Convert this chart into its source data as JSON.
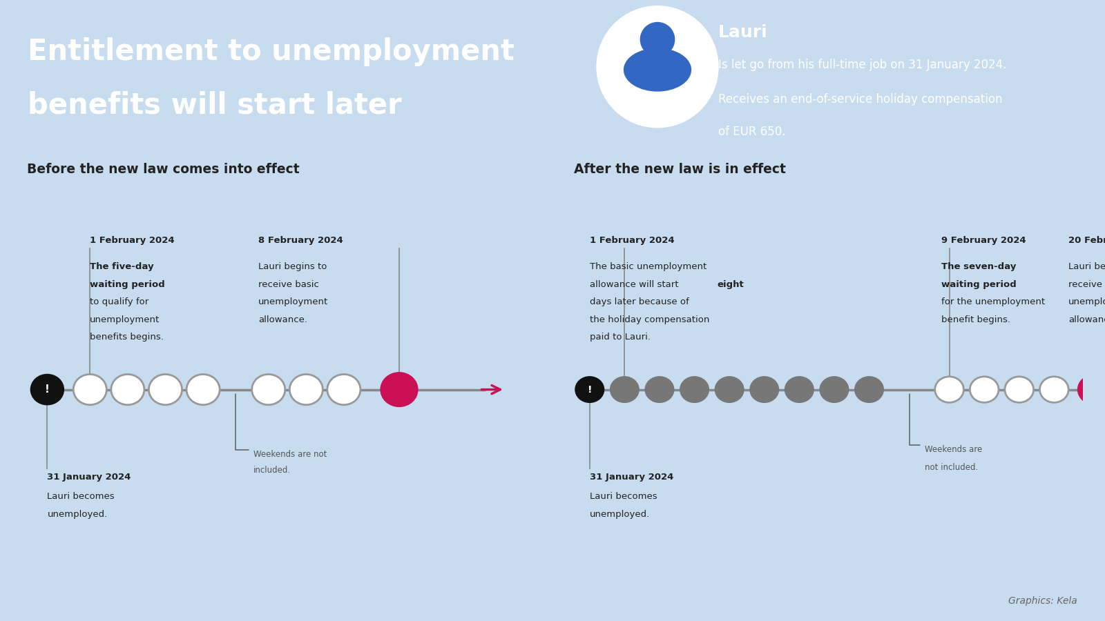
{
  "header_bg": "#3367C4",
  "body_bg": "#C8DCF0",
  "title_line1": "Entitlement to unemployment",
  "title_line2": "benefits will start later",
  "title_color": "#FFFFFF",
  "person_name": "Lauri",
  "person_line1": "Is let go from his full-time job on 31 January 2024.",
  "person_line2": "Receives an end-of-service holiday compensation",
  "person_line3": "of EUR 650.",
  "section1_title": "Before the new law comes into effect",
  "section2_title": "After the new law is in effect",
  "footer": "Graphics: Kela",
  "dark_circle_color": "#777777",
  "white_circle_color": "#FFFFFF",
  "red_circle_color": "#CC1055",
  "black_circle_color": "#111111",
  "arrow_color": "#CC1055",
  "line_color": "#888888",
  "text_dark": "#222222",
  "divider_color": "#AABBCC"
}
